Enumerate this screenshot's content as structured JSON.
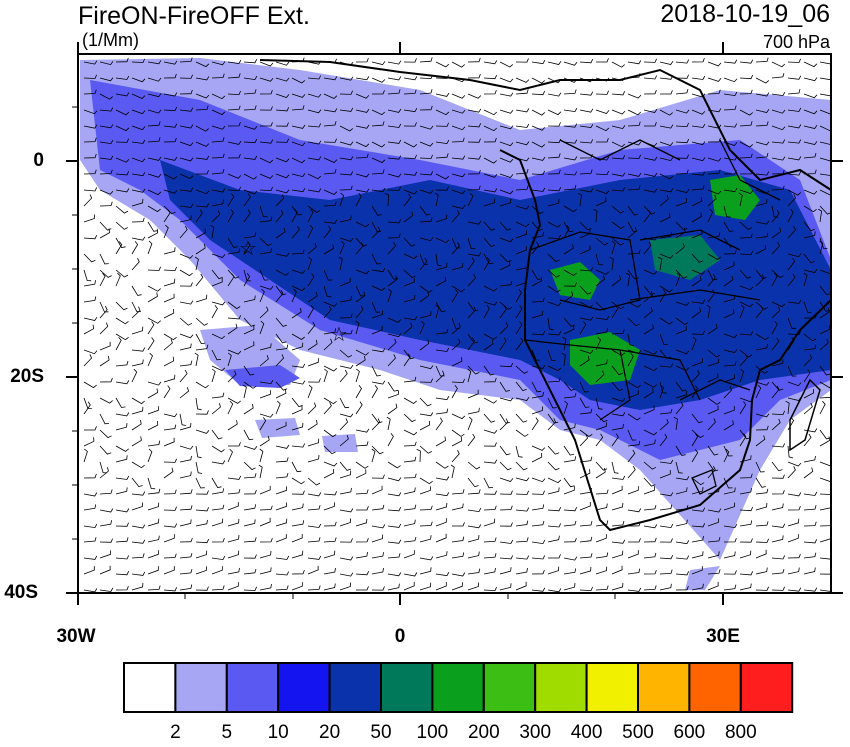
{
  "title": "FireON-FireOFF Ext.",
  "units": "(1/Mm)",
  "datetime": "2018-10-19_06",
  "level": "700 hPa",
  "lat_labels": [
    "0",
    "20S",
    "40S"
  ],
  "lon_labels": [
    "30W",
    "0",
    "30E"
  ],
  "colorbar": {
    "colors": [
      "#ffffff",
      "#a6a6f4",
      "#5a5af2",
      "#1414f0",
      "#0a32aa",
      "#00785a",
      "#0aa01e",
      "#3cbe14",
      "#a0dc00",
      "#f0f000",
      "#ffb400",
      "#ff6400",
      "#ff1e1e"
    ],
    "labels": [
      "2",
      "5",
      "10",
      "20",
      "50",
      "100",
      "200",
      "300",
      "400",
      "500",
      "600",
      "800"
    ]
  }
}
